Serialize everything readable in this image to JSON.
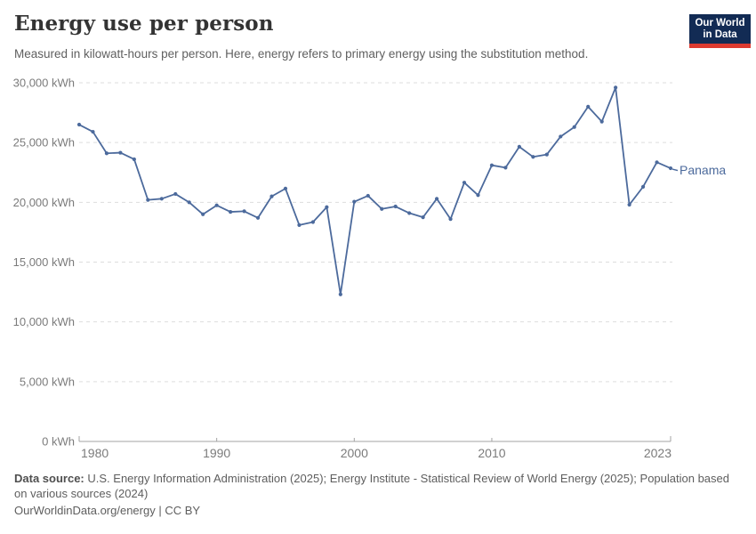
{
  "header": {
    "title": "Energy use per person",
    "subtitle": "Measured in kilowatt-hours per person. Here, energy refers to primary energy using the substitution method.",
    "logo": {
      "line1": "Our World",
      "line2": "in Data",
      "bg_color": "#122B54",
      "accent_color": "#DC3A30"
    }
  },
  "chart_data": {
    "type": "line",
    "title": "Energy use per person",
    "unit": "kWh",
    "grid": "horizontal-dashed",
    "legend_position": "end-of-line",
    "end_label": "Panama",
    "xlim": [
      1980,
      2023
    ],
    "ylim": [
      0,
      30000
    ],
    "x": [
      1980,
      1981,
      1982,
      1983,
      1984,
      1985,
      1986,
      1987,
      1988,
      1989,
      1990,
      1991,
      1992,
      1993,
      1994,
      1995,
      1996,
      1997,
      1998,
      1999,
      2000,
      2001,
      2002,
      2003,
      2004,
      2005,
      2006,
      2007,
      2008,
      2009,
      2010,
      2011,
      2012,
      2013,
      2014,
      2015,
      2016,
      2017,
      2018,
      2019,
      2020,
      2021,
      2022,
      2023
    ],
    "series": [
      {
        "name": "Panama",
        "color": "#4C6A9C",
        "values": [
          26500,
          25900,
          24100,
          24150,
          23600,
          20200,
          20300,
          20700,
          20000,
          19000,
          19750,
          19200,
          19250,
          18700,
          20500,
          21150,
          18100,
          18350,
          19600,
          12300,
          20050,
          20550,
          19450,
          19650,
          19100,
          18750,
          20300,
          18600,
          21650,
          20600,
          23100,
          22900,
          24650,
          23800,
          24000,
          25500,
          26300,
          28000,
          26750,
          29600,
          19800,
          21300,
          23350,
          22850
        ]
      }
    ],
    "x_ticks": [
      {
        "value": 1980,
        "label": "1980"
      },
      {
        "value": 1990,
        "label": "1990"
      },
      {
        "value": 2000,
        "label": "2000"
      },
      {
        "value": 2010,
        "label": "2010"
      },
      {
        "value": 2023,
        "label": "2023"
      }
    ],
    "y_ticks": [
      {
        "value": 0,
        "label": "0 kWh"
      },
      {
        "value": 5000,
        "label": "5,000 kWh"
      },
      {
        "value": 10000,
        "label": "10,000 kWh"
      },
      {
        "value": 15000,
        "label": "15,000 kWh"
      },
      {
        "value": 20000,
        "label": "20,000 kWh"
      },
      {
        "value": 25000,
        "label": "25,000 kWh"
      },
      {
        "value": 30000,
        "label": "30,000 kWh"
      }
    ]
  },
  "footer": {
    "source_label": "Data source:",
    "source_line1": "U.S. Energy Information Administration (2025); Energy Institute - Statistical Review of World Energy (2025); Population based",
    "source_line2": "on various sources (2024)",
    "license_line": "OurWorldinData.org/energy | CC BY"
  }
}
